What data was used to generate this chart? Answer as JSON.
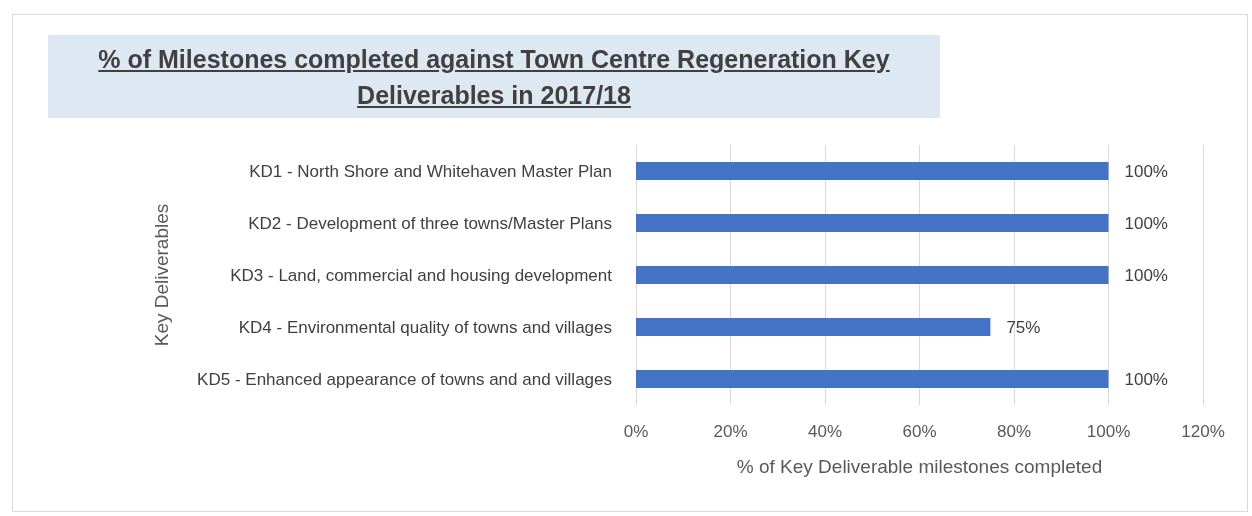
{
  "chart_data": {
    "type": "bar",
    "orientation": "horizontal",
    "title": "% of Milestones completed against Town Centre Regeneration Key Deliverables in 2017/18",
    "ylabel": "Key Deliverables",
    "xlabel": "% of Key Deliverable milestones completed",
    "categories": [
      "KD1 - North Shore and Whitehaven Master Plan",
      "KD2 - Development of three towns/Master Plans",
      "KD3 - Land, commercial and housing development",
      "KD4 - Environmental quality of towns and villages",
      "KD5 - Enhanced appearance of towns and and villages"
    ],
    "values": [
      100,
      100,
      100,
      75,
      100
    ],
    "value_labels": [
      "100%",
      "100%",
      "100%",
      "75%",
      "100%"
    ],
    "color": "#4472c4",
    "xlim": [
      0,
      120
    ],
    "xticks": [
      {
        "value": 0,
        "label": "0%"
      },
      {
        "value": 20,
        "label": "20%"
      },
      {
        "value": 40,
        "label": "40%"
      },
      {
        "value": 60,
        "label": "60%"
      },
      {
        "value": 80,
        "label": "80%"
      },
      {
        "value": 100,
        "label": "100%"
      },
      {
        "value": 120,
        "label": "120%"
      }
    ],
    "grid": "x"
  }
}
